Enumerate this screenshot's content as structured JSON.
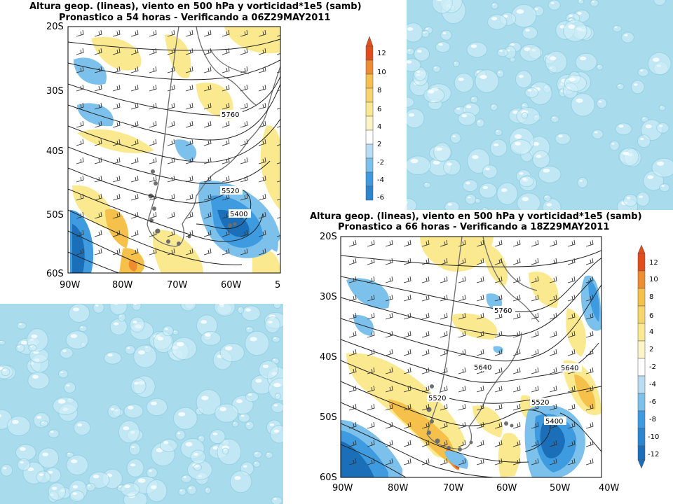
{
  "slide": {
    "background_texture": "water-droplets",
    "texture_colors": {
      "base": "#a8dcec",
      "light": "#d4f1fa",
      "dark": "#7cc3d9"
    }
  },
  "map1": {
    "title_line1": "Altura geop. (lineas), viento en 500 hPa y vorticidad*1e5 (samb)",
    "title_line2": "Pronastico a 54 horas - Verificando a 06Z29MAY2011",
    "lat_labels": [
      "20S",
      "30S",
      "40S",
      "50S",
      "60S"
    ],
    "lon_labels": [
      "90W",
      "80W",
      "70W",
      "60W",
      "5"
    ],
    "contour_labels": [
      "5760",
      "5520",
      "5400"
    ],
    "colorbar_labels": [
      "12",
      "10",
      "8",
      "6",
      "4",
      "2",
      "-2",
      "-4",
      "-6"
    ]
  },
  "map2": {
    "title_line1": "Altura geop. (lineas), viento en 500 hPa y vorticidad*1e5 (samb)",
    "title_line2": "Pronastico a 66 horas - Verificando a 18Z29MAY2011",
    "lat_labels": [
      "20S",
      "30S",
      "40S",
      "50S",
      "60S"
    ],
    "lon_labels": [
      "90W",
      "80W",
      "70W",
      "60W",
      "50W",
      "40W"
    ],
    "contour_labels": [
      "5760",
      "5640",
      "5640",
      "5520",
      "5520",
      "5400"
    ],
    "colorbar_labels": [
      "12",
      "10",
      "8",
      "6",
      "4",
      "2",
      "-2",
      "-4",
      "-6",
      "-8",
      "-10",
      "-12"
    ]
  },
  "colors": {
    "pos_light": "#fbe98f",
    "pos_mid": "#f6c14a",
    "pos_strong": "#ef8c2e",
    "pos_max": "#e34d1b",
    "neg_light": "#7cc0ec",
    "neg_mid": "#3f9be0",
    "neg_strong": "#1b6fb9",
    "land_outline": "#6e6e6e"
  }
}
